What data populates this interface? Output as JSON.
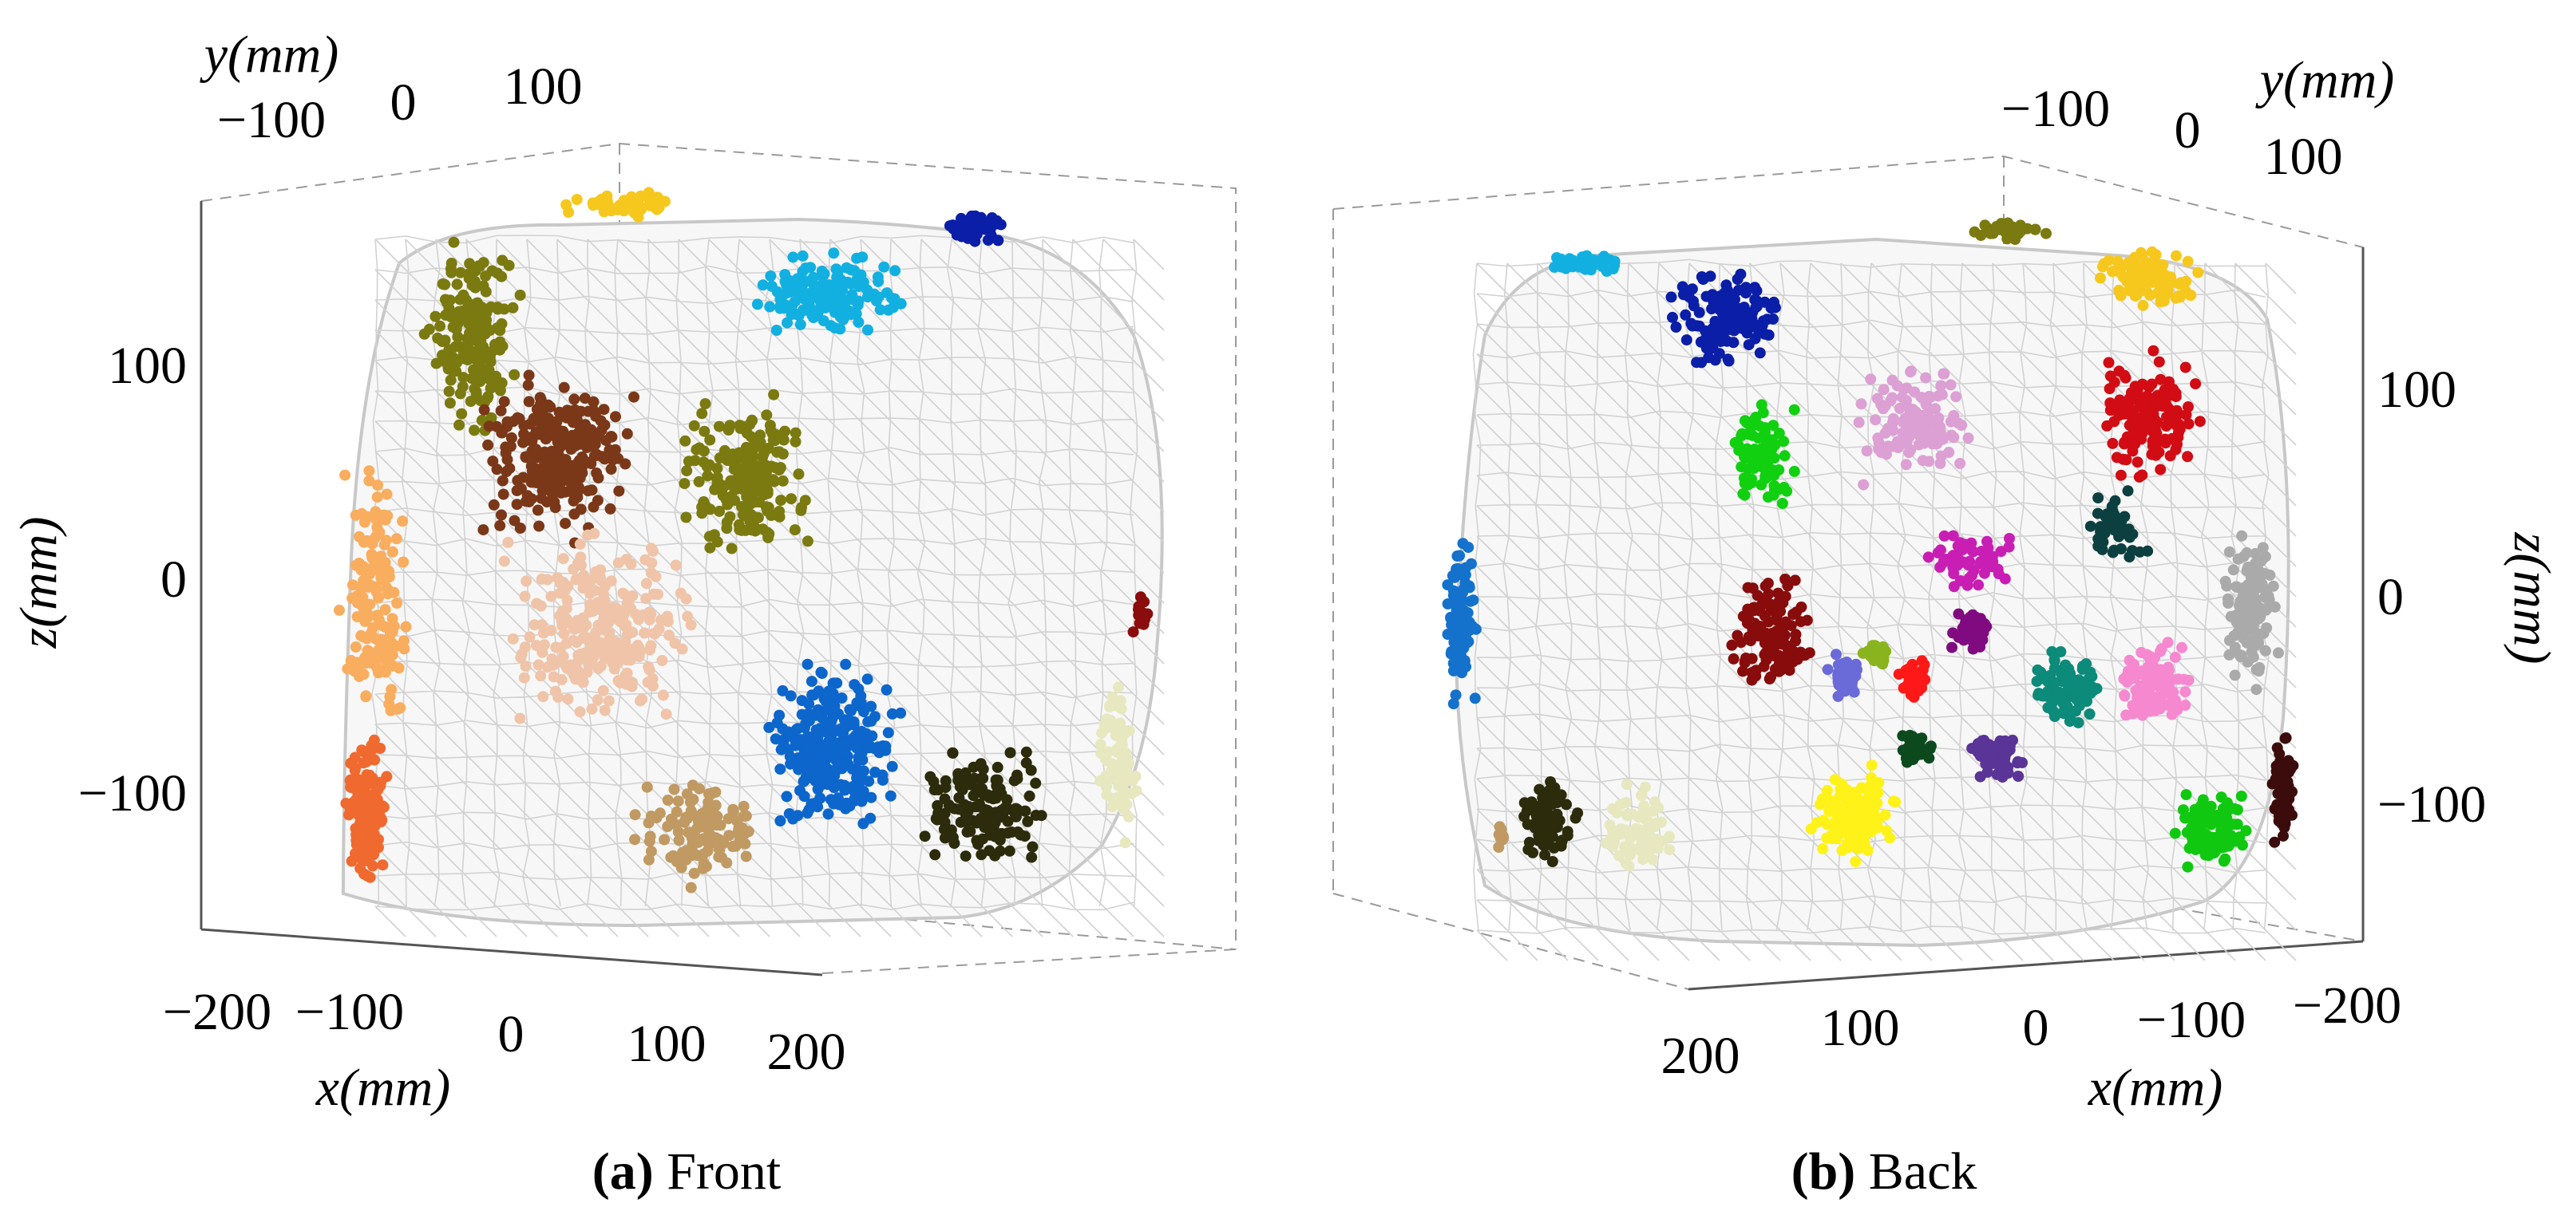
{
  "panels": [
    {
      "id": "a",
      "letter": "(a)",
      "caption_text": " Front",
      "x_axis_label": "x(mm)",
      "y_axis_label": "y(mm)",
      "z_axis_label": "z(mm)",
      "x_ticks": [
        "−200",
        "−100",
        "0",
        "100",
        "200"
      ],
      "y_ticks": [
        "−100",
        "0",
        "100"
      ],
      "z_ticks": [
        "100",
        "0",
        "−100"
      ]
    },
    {
      "id": "b",
      "letter": "(b)",
      "caption_text": " Back",
      "x_axis_label": "x(mm)",
      "y_axis_label": "y(mm)",
      "z_axis_label": "z(mm)",
      "x_ticks": [
        "200",
        "100",
        "0",
        "−100",
        "−200"
      ],
      "y_ticks": [
        "−100",
        "0",
        "100"
      ],
      "z_ticks": [
        "100",
        "0",
        "−100"
      ]
    }
  ],
  "colors": {
    "mesh": "#d2d2d2",
    "box": "#9a9a9a",
    "text": "#000000",
    "front_clusters": [
      "#7a7a10",
      "#f6c81e",
      "#12b0e0",
      "#0a1ea8",
      "#7a3818",
      "#f9ad5e",
      "#f0c4a8",
      "#7a7a10",
      "#f06a30",
      "#0c66cc",
      "#c09a62",
      "#2c2c0c",
      "#e8e8c0",
      "#8a0c0c"
    ],
    "back_clusters": [
      "#12b0e0",
      "#0a1ea8",
      "#7a7a10",
      "#f6c81e",
      "#d20c14",
      "#dca0d4",
      "#10d010",
      "#c81eb4",
      "#0c4040",
      "#aaaaaa",
      "#1472cc",
      "#880c0c",
      "#6a6ad8",
      "#8ab41e",
      "#ff1818",
      "#800a80",
      "#0c8a7a",
      "#f688d0",
      "#0c4a1e",
      "#5a3496",
      "#fff218",
      "#2c2c0c",
      "#e8e8c0",
      "#10c810",
      "#3c0c0c",
      "#c09a62"
    ]
  }
}
